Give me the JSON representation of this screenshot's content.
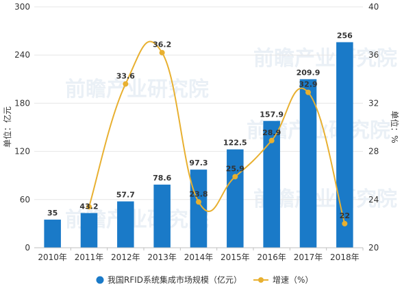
{
  "chart_data": {
    "type": "bar+line",
    "categories": [
      "2010年",
      "2011年",
      "2012年",
      "2013年",
      "2014年",
      "2015年",
      "2016年",
      "2017年",
      "2018年"
    ],
    "series": [
      {
        "name": "我国RFID系统集成市场规模（亿元）",
        "type": "bar",
        "axis": "left",
        "values": [
          35,
          43.2,
          57.7,
          78.6,
          97.3,
          122.5,
          157.9,
          209.9,
          256
        ],
        "labels": [
          "35",
          "43.2",
          "57.7",
          "78.6",
          "97.3",
          "122.5",
          "157.9",
          "209.9",
          "256"
        ]
      },
      {
        "name": "增速（%）",
        "type": "line",
        "axis": "right",
        "values": [
          null,
          23.4,
          33.6,
          36.2,
          23.8,
          25.9,
          28.9,
          32.9,
          22
        ],
        "labels": [
          "",
          "",
          "33.6",
          "36.2",
          "23.8",
          "25.9",
          "28.9",
          "32.9",
          "22"
        ]
      }
    ],
    "ylabel": "单位：亿元",
    "y2label": "单位：%",
    "ylim": [
      0,
      300
    ],
    "y2lim": [
      20,
      40
    ],
    "yticks": [
      0,
      60,
      120,
      180,
      240,
      300
    ],
    "yticks_labels": [
      "0",
      "60",
      "120",
      "180",
      "240",
      "300"
    ],
    "y2ticks": [
      20,
      24,
      28,
      32,
      36,
      40
    ],
    "y2ticks_labels": [
      "20",
      "24",
      "28",
      "32",
      "36",
      "40"
    ],
    "legend_position": "bottom",
    "grid": "horizontal",
    "colors": {
      "bar": "#1a7ac8",
      "line": "#e8b030",
      "grid": "#e6e6e6"
    },
    "watermark": "前瞻产业研究院"
  }
}
